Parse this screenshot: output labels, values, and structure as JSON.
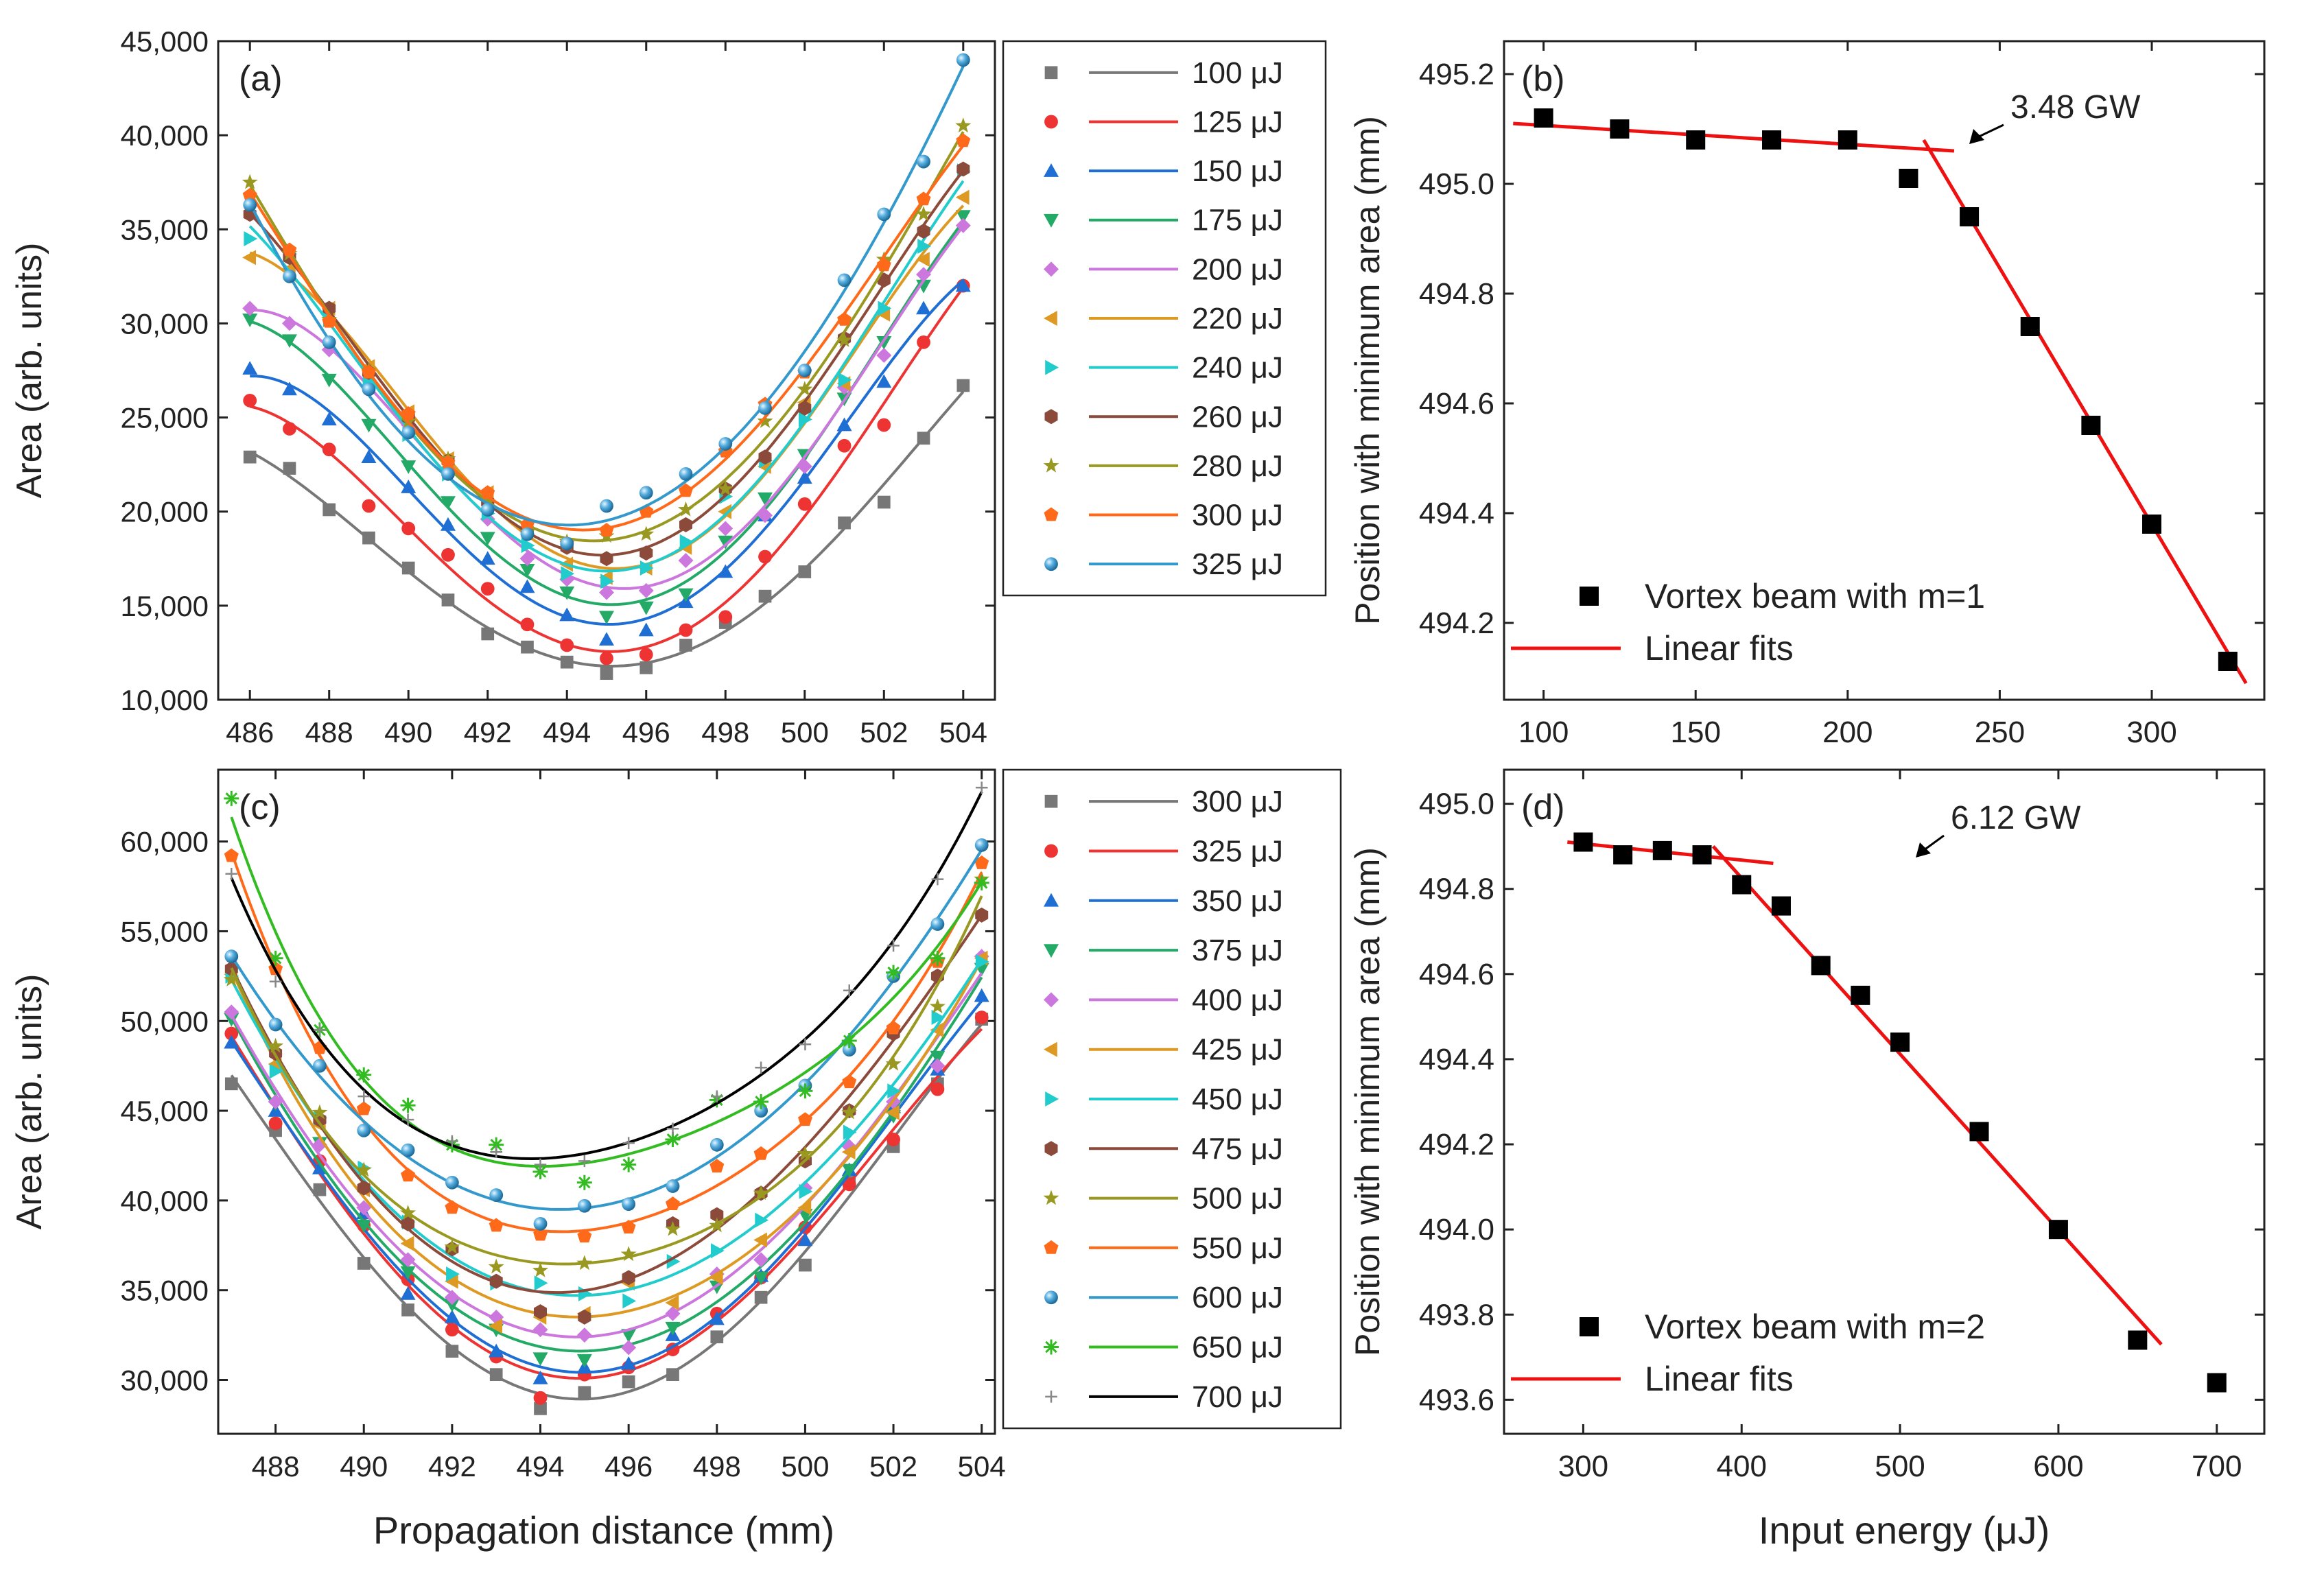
{
  "figure": {
    "shared_xlabel_left": "Propagation distance (mm)",
    "shared_xlabel_right": "Input energy (μJ)"
  },
  "chart_data": [
    {
      "id": "a",
      "type": "scatter",
      "panel_label": "(a)",
      "title": "",
      "xlabel": "Propagation distance (mm)",
      "ylabel": "Area (arb. units)",
      "xlim": [
        485.2,
        504.8
      ],
      "ylim": [
        10000,
        45000
      ],
      "xticks": [
        "486",
        "488",
        "490",
        "492",
        "494",
        "496",
        "498",
        "500",
        "502",
        "504"
      ],
      "yticks": [
        "10,000",
        "15,000",
        "20,000",
        "25,000",
        "30,000",
        "35,000",
        "40,000",
        "45,000"
      ],
      "legend_position": "outside-right",
      "x": [
        486,
        487,
        488,
        489,
        490,
        491,
        492,
        493,
        494,
        495,
        496,
        497,
        498,
        499,
        500,
        501,
        502,
        503,
        504
      ],
      "series": [
        {
          "name": "100 μJ",
          "color": "#777777",
          "marker": "square",
          "values": [
            22900,
            22300,
            20100,
            18600,
            17000,
            15300,
            13500,
            12800,
            12000,
            11400,
            11700,
            12900,
            14100,
            15500,
            16800,
            19400,
            20500,
            23900,
            26700
          ]
        },
        {
          "name": "125 μJ",
          "color": "#ee3333",
          "marker": "circle",
          "values": [
            25900,
            24400,
            23300,
            20300,
            19100,
            17700,
            15900,
            14000,
            12900,
            12200,
            12400,
            13700,
            14400,
            17600,
            20400,
            23500,
            24600,
            29000,
            32000
          ]
        },
        {
          "name": "150 μJ",
          "color": "#1f6ed4",
          "marker": "triangle-up",
          "values": [
            27600,
            26500,
            24900,
            22900,
            21300,
            19300,
            17500,
            16000,
            14500,
            13200,
            13700,
            15200,
            16800,
            19800,
            21800,
            24600,
            26900,
            30800,
            32000
          ]
        },
        {
          "name": "175 μJ",
          "color": "#22aa66",
          "marker": "triangle-down",
          "values": [
            30200,
            29100,
            27000,
            24600,
            22400,
            20500,
            18600,
            16900,
            15700,
            14400,
            14900,
            15600,
            18400,
            20700,
            23000,
            26000,
            29000,
            32000,
            35700
          ]
        },
        {
          "name": "200 μJ",
          "color": "#cc77dd",
          "marker": "diamond",
          "values": [
            30800,
            30000,
            28600,
            26700,
            24600,
            22300,
            19600,
            17500,
            16400,
            15700,
            15800,
            17400,
            19100,
            19800,
            22400,
            26600,
            28300,
            32600,
            35200
          ]
        },
        {
          "name": "220 μJ",
          "color": "#dd9922",
          "marker": "triangle-left",
          "values": [
            33500,
            32900,
            30800,
            27700,
            25300,
            22800,
            21000,
            18900,
            17200,
            16500,
            17000,
            18100,
            20000,
            22400,
            25800,
            26800,
            30500,
            33400,
            36700
          ]
        },
        {
          "name": "240 μJ",
          "color": "#22cccc",
          "marker": "triangle-right",
          "values": [
            34500,
            33700,
            30200,
            27000,
            24100,
            22000,
            19900,
            18200,
            16700,
            16300,
            17000,
            18400,
            20800,
            22700,
            24900,
            27000,
            30800,
            34100,
            38100
          ]
        },
        {
          "name": "260 μJ",
          "color": "#8b4a3a",
          "marker": "hexagon",
          "values": [
            35800,
            33500,
            30800,
            27400,
            25000,
            22700,
            20500,
            19000,
            18100,
            17500,
            17800,
            19300,
            21200,
            22900,
            25500,
            29200,
            32300,
            34900,
            38200
          ]
        },
        {
          "name": "280 μJ",
          "color": "#999922",
          "marker": "star",
          "values": [
            37500,
            33700,
            30200,
            27500,
            24800,
            22800,
            20500,
            18900,
            18400,
            18700,
            18800,
            20100,
            21200,
            24800,
            26500,
            29100,
            33400,
            35800,
            40500
          ]
        },
        {
          "name": "300 μJ",
          "color": "#ff6a1a",
          "marker": "pentagon",
          "values": [
            36800,
            33900,
            30100,
            27400,
            25200,
            22600,
            21000,
            19300,
            18300,
            19000,
            20000,
            21100,
            23200,
            25700,
            27400,
            30200,
            33100,
            36600,
            39700
          ]
        },
        {
          "name": "325 μJ",
          "color": "#3399cc",
          "marker": "sphere",
          "values": [
            36300,
            32500,
            29000,
            26500,
            24200,
            22000,
            20100,
            18800,
            18300,
            20300,
            21000,
            22000,
            23600,
            25500,
            27500,
            32300,
            35800,
            38600,
            44000
          ]
        }
      ]
    },
    {
      "id": "b",
      "type": "scatter",
      "panel_label": "(b)",
      "xlabel": "Input energy (μJ)",
      "ylabel": "Position with minimum area (mm)",
      "xlim": [
        87,
        337
      ],
      "ylim": [
        494.06,
        495.26
      ],
      "xticks": [
        "100",
        "150",
        "200",
        "250",
        "300"
      ],
      "yticks": [
        "494.2",
        "494.4",
        "494.6",
        "494.8",
        "495.0",
        "495.2"
      ],
      "legend_position": "bottom-left",
      "annotation": "3.48 GW",
      "series": [
        {
          "name": "Vortex beam with m=1",
          "type": "scatter",
          "color": "#000000",
          "x": [
            100,
            125,
            150,
            175,
            200,
            220,
            240,
            260,
            280,
            300,
            325
          ],
          "values": [
            495.12,
            495.1,
            495.08,
            495.08,
            495.08,
            495.01,
            494.94,
            494.74,
            494.56,
            494.38,
            494.13
          ]
        },
        {
          "name": "Linear fits",
          "type": "line",
          "color": "#ee1111",
          "segments": [
            {
              "x": [
                90,
                235
              ],
              "values": [
                495.11,
                495.06
              ]
            },
            {
              "x": [
                225,
                331
              ],
              "values": [
                495.08,
                494.09
              ]
            }
          ]
        }
      ]
    },
    {
      "id": "c",
      "type": "scatter",
      "panel_label": "(c)",
      "xlabel": "Propagation distance (mm)",
      "ylabel": "Area (arb. units)",
      "xlim": [
        486.7,
        504.3
      ],
      "ylim": [
        27000,
        64000
      ],
      "xticks": [
        "488",
        "490",
        "492",
        "494",
        "496",
        "498",
        "500",
        "502",
        "504"
      ],
      "yticks": [
        "30,000",
        "35,000",
        "40,000",
        "45,000",
        "50,000",
        "55,000",
        "60,000"
      ],
      "legend_position": "outside-right",
      "x": [
        487,
        488,
        489,
        490,
        491,
        492,
        493,
        494,
        495,
        496,
        497,
        498,
        499,
        500,
        501,
        502,
        503,
        504
      ],
      "series": [
        {
          "name": "300  μJ",
          "color": "#777777",
          "marker": "square",
          "values": [
            46500,
            43900,
            40600,
            36500,
            33900,
            31600,
            30300,
            28400,
            29300,
            29900,
            30300,
            32400,
            34600,
            36400,
            41000,
            43000,
            46500,
            50100
          ]
        },
        {
          "name": "325  μJ",
          "color": "#ee3333",
          "marker": "circle",
          "values": [
            49300,
            44300,
            42200,
            38600,
            35600,
            32800,
            31300,
            29000,
            30300,
            30700,
            31700,
            33700,
            35700,
            38500,
            40900,
            43400,
            46200,
            50200
          ]
        },
        {
          "name": "350  μJ",
          "color": "#1f6ed4",
          "marker": "triangle-up",
          "values": [
            48800,
            45000,
            41800,
            39300,
            34800,
            33500,
            31600,
            30100,
            30700,
            30900,
            32500,
            33400,
            35800,
            37800,
            41700,
            45200,
            47300,
            51400
          ]
        },
        {
          "name": "375  μJ",
          "color": "#22aa66",
          "marker": "triangle-down",
          "values": [
            50100,
            45400,
            43200,
            38600,
            36000,
            34200,
            32800,
            31200,
            31100,
            32500,
            32900,
            35200,
            35700,
            39200,
            41700,
            44700,
            48000,
            52900
          ]
        },
        {
          "name": "400  μJ",
          "color": "#cc77dd",
          "marker": "diamond",
          "values": [
            50500,
            45500,
            43100,
            39600,
            36700,
            34600,
            33500,
            32800,
            32500,
            31800,
            33700,
            35900,
            36700,
            40700,
            43000,
            45500,
            47500,
            53600
          ]
        },
        {
          "name": "425  μJ",
          "color": "#dd9922",
          "marker": "triangle-left",
          "values": [
            52600,
            47600,
            44200,
            40600,
            37600,
            35500,
            33000,
            33500,
            33700,
            35400,
            34300,
            35700,
            37800,
            39600,
            42700,
            44900,
            49500,
            53500
          ]
        },
        {
          "name": "450  μJ",
          "color": "#22cccc",
          "marker": "triangle-right",
          "values": [
            52500,
            47200,
            44600,
            41800,
            38800,
            35900,
            35400,
            35400,
            34800,
            34400,
            36600,
            37200,
            38900,
            40500,
            43800,
            46100,
            50200,
            53300
          ]
        },
        {
          "name": "475  μJ",
          "color": "#8b4a3a",
          "marker": "hexagon",
          "values": [
            52900,
            48200,
            44500,
            40700,
            38700,
            37300,
            35500,
            33800,
            33500,
            35700,
            38700,
            39200,
            40400,
            42200,
            45000,
            49300,
            52500,
            55900
          ]
        },
        {
          "name": "500  μJ",
          "color": "#999922",
          "marker": "star",
          "values": [
            52300,
            48600,
            44900,
            41700,
            39300,
            37400,
            36300,
            36100,
            36500,
            37000,
            38400,
            38600,
            40400,
            42600,
            44900,
            47600,
            50800,
            57900
          ]
        },
        {
          "name": "550  μJ",
          "color": "#ff6a1a",
          "marker": "pentagon",
          "values": [
            59200,
            52900,
            48500,
            45100,
            41400,
            39600,
            38600,
            38100,
            38000,
            38500,
            39800,
            41900,
            42600,
            44500,
            46600,
            49600,
            53300,
            58800
          ]
        },
        {
          "name": "600  μJ",
          "color": "#3399cc",
          "marker": "sphere",
          "values": [
            53600,
            49800,
            47500,
            43900,
            42800,
            41000,
            40300,
            38700,
            39700,
            39800,
            40800,
            43100,
            45000,
            46400,
            48400,
            52500,
            55400,
            59800
          ]
        },
        {
          "name": "650  μJ",
          "color": "#33bb22",
          "marker": "asterisk",
          "values": [
            62400,
            53500,
            49500,
            47000,
            45300,
            43100,
            43100,
            41600,
            41000,
            42000,
            43400,
            45600,
            45500,
            46100,
            48900,
            52700,
            53500,
            57700
          ]
        },
        {
          "name": "700  μJ",
          "color": "#000000",
          "marker": "plus",
          "values": [
            58200,
            52200,
            49500,
            45800,
            44500,
            43300,
            42700,
            42000,
            42200,
            43200,
            44000,
            45800,
            47400,
            48700,
            51700,
            54200,
            57900,
            63000
          ]
        }
      ]
    },
    {
      "id": "d",
      "type": "scatter",
      "panel_label": "(d)",
      "xlabel": "Input energy (μJ)",
      "ylabel": "Position with minimum area (mm)",
      "xlim": [
        250,
        730
      ],
      "ylim": [
        493.52,
        495.08
      ],
      "xticks": [
        "300",
        "400",
        "500",
        "600",
        "700"
      ],
      "yticks": [
        "493.6",
        "493.8",
        "494.0",
        "494.2",
        "494.4",
        "494.6",
        "494.8",
        "495.0"
      ],
      "legend_position": "bottom-left",
      "annotation": "6.12 GW",
      "series": [
        {
          "name": "Vortex beam with m=2",
          "type": "scatter",
          "color": "#000000",
          "x": [
            300,
            325,
            350,
            375,
            400,
            425,
            450,
            475,
            500,
            550,
            600,
            650,
            700
          ],
          "values": [
            494.91,
            494.88,
            494.89,
            494.88,
            494.81,
            494.76,
            494.62,
            494.55,
            494.44,
            494.23,
            494.0,
            493.74,
            493.64
          ]
        },
        {
          "name": "Linear fits",
          "type": "line",
          "color": "#ee1111",
          "segments": [
            {
              "x": [
                290,
                420
              ],
              "values": [
                494.91,
                494.86
              ]
            },
            {
              "x": [
                382,
                665
              ],
              "values": [
                494.9,
                493.73
              ]
            }
          ]
        }
      ]
    }
  ]
}
